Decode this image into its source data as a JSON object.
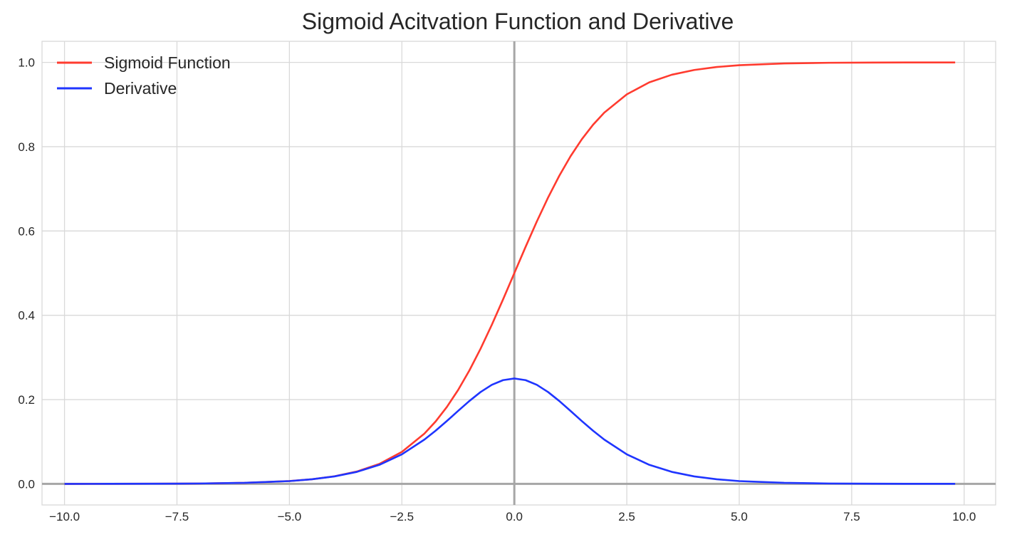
{
  "chart_data": {
    "type": "line",
    "title": "Sigmoid Acitvation Function and Derivative",
    "xlabel": "",
    "ylabel": "",
    "xlim": [
      -10.5,
      10.7
    ],
    "ylim": [
      -0.05,
      1.05
    ],
    "x_ticks": [
      -10.0,
      -7.5,
      -5.0,
      -2.5,
      0.0,
      2.5,
      5.0,
      7.5,
      10.0
    ],
    "x_tick_labels": [
      "−10.0",
      "−7.5",
      "−5.0",
      "−2.5",
      "0.0",
      "2.5",
      "5.0",
      "7.5",
      "10.0"
    ],
    "y_ticks": [
      0.0,
      0.2,
      0.4,
      0.6,
      0.8,
      1.0
    ],
    "y_tick_labels": [
      "0.0",
      "0.2",
      "0.4",
      "0.6",
      "0.8",
      "1.0"
    ],
    "grid": true,
    "legend_position": "top-left",
    "reference_lines": {
      "x": 0,
      "y": 0,
      "color": "#a6a6a6"
    },
    "series": [
      {
        "name": "Sigmoid Function",
        "color": "#ff3b2f",
        "x": [
          -10,
          -9,
          -8,
          -7,
          -6,
          -5,
          -4.5,
          -4,
          -3.5,
          -3,
          -2.5,
          -2,
          -1.75,
          -1.5,
          -1.25,
          -1,
          -0.75,
          -0.5,
          -0.25,
          0,
          0.25,
          0.5,
          0.75,
          1,
          1.25,
          1.5,
          1.75,
          2,
          2.5,
          3,
          3.5,
          4,
          4.5,
          5,
          6,
          7,
          8,
          9,
          9.8
        ],
        "y": [
          0.0,
          0.0001,
          0.0003,
          0.0009,
          0.0025,
          0.0067,
          0.011,
          0.018,
          0.0293,
          0.0474,
          0.0759,
          0.1192,
          0.148,
          0.1824,
          0.2227,
          0.2689,
          0.3208,
          0.3775,
          0.4378,
          0.5,
          0.5622,
          0.6225,
          0.6792,
          0.7311,
          0.7773,
          0.8176,
          0.852,
          0.8808,
          0.9241,
          0.9526,
          0.9707,
          0.982,
          0.989,
          0.9933,
          0.9975,
          0.9991,
          0.9997,
          0.9999,
          0.9999
        ]
      },
      {
        "name": "Derivative",
        "color": "#1f35ff",
        "x": [
          -10,
          -9,
          -8,
          -7,
          -6,
          -5,
          -4.5,
          -4,
          -3.5,
          -3,
          -2.5,
          -2,
          -1.75,
          -1.5,
          -1.25,
          -1,
          -0.75,
          -0.5,
          -0.25,
          0,
          0.25,
          0.5,
          0.75,
          1,
          1.25,
          1.5,
          1.75,
          2,
          2.5,
          3,
          3.5,
          4,
          4.5,
          5,
          6,
          7,
          8,
          9,
          9.8
        ],
        "y": [
          0.0,
          0.0001,
          0.0003,
          0.0009,
          0.0025,
          0.0066,
          0.0109,
          0.0177,
          0.0285,
          0.0452,
          0.0701,
          0.105,
          0.1261,
          0.1491,
          0.1731,
          0.1966,
          0.2179,
          0.235,
          0.2461,
          0.25,
          0.2461,
          0.235,
          0.2179,
          0.1966,
          0.1731,
          0.1491,
          0.1261,
          0.105,
          0.0701,
          0.0452,
          0.0285,
          0.0177,
          0.0109,
          0.0066,
          0.0025,
          0.0009,
          0.0003,
          0.0001,
          0.0001
        ]
      }
    ]
  }
}
